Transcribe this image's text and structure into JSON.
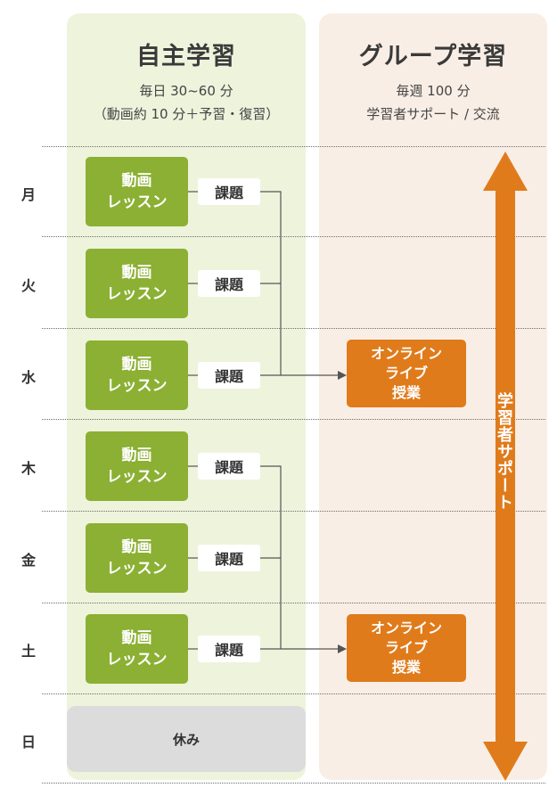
{
  "columns": {
    "self_study": {
      "title": "自主学習",
      "sub1": "毎日 30~60 分",
      "sub2": "（動画約 10 分＋予習・復習）"
    },
    "group_study": {
      "title": "グループ学習",
      "sub1": "毎週 100 分",
      "sub2": "学習者サポート / 交流"
    }
  },
  "days": [
    "月",
    "火",
    "水",
    "木",
    "金",
    "土",
    "日"
  ],
  "lesson": {
    "line1": "動画",
    "line2": "レッスン"
  },
  "task_label": "課題",
  "live_class": {
    "line1": "オンライン",
    "line2": "ライブ",
    "line3": "授業"
  },
  "rest_label": "休み",
  "support_label": "学習者サポート",
  "colors": {
    "lesson_green": "#8bb033",
    "live_orange": "#e07b1b",
    "self_bg": "#eef3dc",
    "group_bg": "#f9eee5",
    "rest_gray": "#dcdcdc"
  }
}
